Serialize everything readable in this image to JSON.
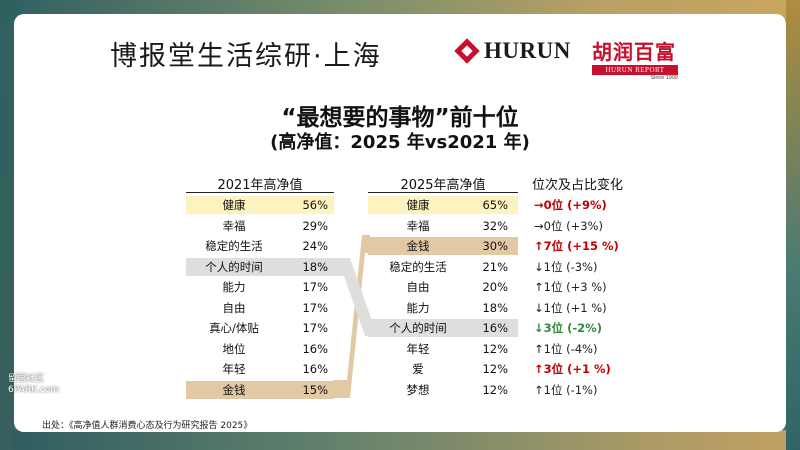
{
  "header": {
    "brand": "博报堂生活综研·上海",
    "hurun_en": "HURUN",
    "hurun_cn": "胡润百富",
    "hurun_report": "HURUN REPORT",
    "hurun_since": "Since 1999"
  },
  "title": "“最想要的事物”前十位",
  "subtitle": "(高净值：2025 年vs2021 年)",
  "table2021": {
    "header": "2021年高净值",
    "rows": [
      {
        "label": "健康",
        "pct": "56%"
      },
      {
        "label": "幸福",
        "pct": "29%"
      },
      {
        "label": "稳定的生活",
        "pct": "24%"
      },
      {
        "label": "个人的时间",
        "pct": "18%"
      },
      {
        "label": "能力",
        "pct": "17%"
      },
      {
        "label": "自由",
        "pct": "17%"
      },
      {
        "label": "真心/体贴",
        "pct": "17%"
      },
      {
        "label": "地位",
        "pct": "16%"
      },
      {
        "label": "年轻",
        "pct": "16%"
      },
      {
        "label": "金钱",
        "pct": "15%"
      }
    ]
  },
  "table2025": {
    "header": "2025年高净值",
    "rows": [
      {
        "label": "健康",
        "pct": "65%"
      },
      {
        "label": "幸福",
        "pct": "32%"
      },
      {
        "label": "金钱",
        "pct": "30%"
      },
      {
        "label": "稳定的生活",
        "pct": "21%"
      },
      {
        "label": "自由",
        "pct": "20%"
      },
      {
        "label": "能力",
        "pct": "18%"
      },
      {
        "label": "个人的时间",
        "pct": "16%"
      },
      {
        "label": "年轻",
        "pct": "12%"
      },
      {
        "label": "爱",
        "pct": "12%"
      },
      {
        "label": "梦想",
        "pct": "12%"
      }
    ]
  },
  "changes": {
    "header": "位次及占比变化",
    "rows": [
      {
        "text": "→0位 (+9%)",
        "color": "#c00000"
      },
      {
        "text": "→0位 (+3%)",
        "color": "#222222"
      },
      {
        "text": "↑7位 (+15 %)",
        "color": "#c00000"
      },
      {
        "text": "↓1位 (-3%)",
        "color": "#222222"
      },
      {
        "text": "↑1位 (+3 %)",
        "color": "#222222"
      },
      {
        "text": "↓1位 (+1 %)",
        "color": "#222222"
      },
      {
        "text": "↓3位 (-2%)",
        "color": "#2e8b3a"
      },
      {
        "text": "↑1位 (-4%)",
        "color": "#222222"
      },
      {
        "text": "↑3位 (+1 %)",
        "color": "#c00000"
      },
      {
        "text": "↑1位 (-1%)",
        "color": "#222222"
      }
    ]
  },
  "colors": {
    "health_highlight": "#fdf3c0",
    "money_highlight": "#e2c9a3",
    "time_highlight": "#dedede"
  },
  "source": "出处：《高净值人群消费心态及行为研究报告 2025》",
  "watermark": {
    "line1": "留园社区",
    "line2": "6PARK.com"
  }
}
